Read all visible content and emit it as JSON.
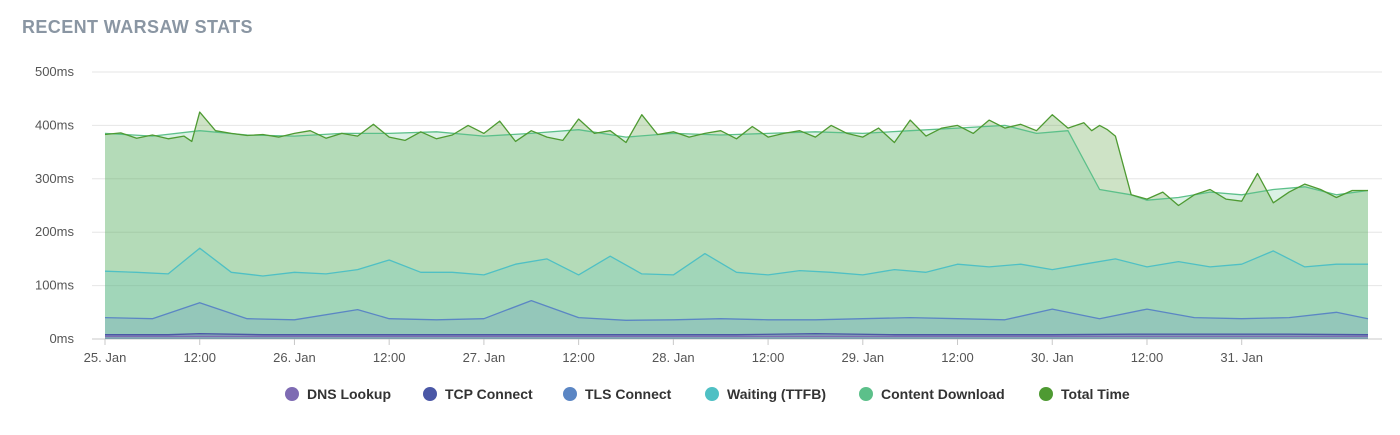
{
  "title": "RECENT WARSAW STATS",
  "colors": {
    "dns": "#7e6bb3",
    "tcp": "#4a57a6",
    "tls": "#5b86c4",
    "ttfb": "#4fc0c4",
    "download": "#5cc08a",
    "total": "#4e9a32",
    "grid": "#e6e6e6",
    "axis": "#c8c8c8"
  },
  "chart_data": {
    "type": "area",
    "title": "RECENT WARSAW STATS",
    "xlabel": "",
    "ylabel": "",
    "ylim": [
      0,
      500
    ],
    "y_ticks": [
      "0ms",
      "100ms",
      "200ms",
      "300ms",
      "400ms",
      "500ms"
    ],
    "y_tick_values": [
      0,
      100,
      200,
      300,
      400,
      500
    ],
    "x_ticks": [
      "25. Jan",
      "12:00",
      "26. Jan",
      "12:00",
      "27. Jan",
      "12:00",
      "28. Jan",
      "12:00",
      "29. Jan",
      "12:00",
      "30. Jan",
      "12:00",
      "31. Jan"
    ],
    "x_tick_values": [
      0,
      12,
      24,
      36,
      48,
      60,
      72,
      84,
      96,
      108,
      120,
      132,
      144
    ],
    "x_unit": "hours since 25. Jan 00:00",
    "x_range": [
      0,
      160
    ],
    "grid": true,
    "legend_position": "bottom",
    "series": [
      {
        "name": "DNS Lookup",
        "key": "dns",
        "x": [
          0,
          20,
          40,
          60,
          80,
          100,
          120,
          140,
          160
        ],
        "values": [
          5,
          5,
          5,
          5,
          5,
          5,
          5,
          5,
          5
        ]
      },
      {
        "name": "TCP Connect",
        "key": "tcp",
        "x": [
          0,
          8,
          12,
          20,
          32,
          40,
          52,
          60,
          70,
          80,
          90,
          100,
          110,
          120,
          130,
          140,
          150,
          160
        ],
        "values": [
          8,
          8,
          10,
          8,
          8,
          8,
          8,
          8,
          8,
          8,
          10,
          8,
          8,
          8,
          9,
          9,
          9,
          8
        ]
      },
      {
        "name": "TLS Connect",
        "key": "tls",
        "x": [
          0,
          6,
          12,
          18,
          24,
          32,
          36,
          42,
          48,
          54,
          60,
          66,
          72,
          78,
          84,
          90,
          96,
          102,
          108,
          114,
          120,
          126,
          132,
          138,
          144,
          150,
          156,
          160
        ],
        "values": [
          40,
          38,
          68,
          38,
          36,
          55,
          38,
          36,
          38,
          72,
          40,
          35,
          36,
          38,
          36,
          36,
          38,
          40,
          38,
          36,
          56,
          38,
          56,
          40,
          38,
          40,
          50,
          38
        ]
      },
      {
        "name": "Waiting (TTFB)",
        "key": "ttfb",
        "x": [
          0,
          4,
          8,
          12,
          16,
          20,
          24,
          28,
          32,
          36,
          40,
          44,
          48,
          52,
          56,
          60,
          64,
          68,
          72,
          76,
          80,
          84,
          88,
          92,
          96,
          100,
          104,
          108,
          112,
          116,
          120,
          124,
          128,
          132,
          136,
          140,
          144,
          148,
          152,
          156,
          160
        ],
        "values": [
          127,
          125,
          122,
          170,
          125,
          118,
          125,
          122,
          130,
          148,
          125,
          125,
          120,
          140,
          150,
          120,
          155,
          122,
          120,
          160,
          125,
          120,
          128,
          125,
          120,
          130,
          125,
          140,
          135,
          140,
          130,
          140,
          150,
          135,
          145,
          135,
          140,
          165,
          135,
          140,
          140
        ]
      },
      {
        "name": "Content Download",
        "key": "download",
        "x": [
          0,
          6,
          12,
          18,
          24,
          30,
          36,
          42,
          48,
          54,
          60,
          66,
          72,
          78,
          84,
          90,
          96,
          102,
          108,
          114,
          118,
          122,
          126,
          130,
          132,
          136,
          140,
          144,
          148,
          152,
          156,
          160
        ],
        "values": [
          385,
          380,
          390,
          382,
          380,
          385,
          385,
          388,
          380,
          385,
          392,
          378,
          385,
          382,
          385,
          388,
          385,
          390,
          395,
          400,
          385,
          390,
          280,
          270,
          260,
          265,
          275,
          270,
          280,
          285,
          270,
          278
        ]
      },
      {
        "name": "Total Time",
        "key": "total",
        "x": [
          0,
          2,
          4,
          6,
          8,
          10,
          11,
          12,
          14,
          16,
          18,
          20,
          22,
          24,
          26,
          28,
          30,
          32,
          34,
          36,
          38,
          40,
          42,
          44,
          46,
          48,
          50,
          52,
          54,
          56,
          58,
          60,
          62,
          64,
          66,
          68,
          70,
          72,
          74,
          76,
          78,
          80,
          82,
          84,
          86,
          88,
          90,
          92,
          94,
          96,
          98,
          100,
          102,
          104,
          106,
          108,
          110,
          112,
          114,
          116,
          118,
          120,
          122,
          124,
          125,
          126,
          127,
          128,
          130,
          132,
          134,
          136,
          138,
          140,
          142,
          144,
          146,
          148,
          150,
          152,
          154,
          156,
          158,
          160
        ],
        "values": [
          383,
          386,
          376,
          382,
          375,
          380,
          370,
          425,
          390,
          385,
          381,
          383,
          378,
          385,
          390,
          376,
          385,
          380,
          402,
          378,
          372,
          388,
          375,
          382,
          400,
          385,
          408,
          370,
          390,
          378,
          372,
          412,
          385,
          390,
          368,
          420,
          383,
          388,
          378,
          385,
          390,
          375,
          398,
          378,
          385,
          390,
          378,
          400,
          385,
          378,
          395,
          368,
          410,
          380,
          395,
          400,
          385,
          410,
          395,
          402,
          390,
          420,
          395,
          405,
          390,
          400,
          392,
          380,
          270,
          262,
          275,
          250,
          270,
          280,
          262,
          258,
          310,
          255,
          275,
          290,
          280,
          265,
          278,
          278
        ]
      }
    ]
  },
  "legend": [
    {
      "label": "DNS Lookup",
      "color_key": "dns"
    },
    {
      "label": "TCP Connect",
      "color_key": "tcp"
    },
    {
      "label": "TLS Connect",
      "color_key": "tls"
    },
    {
      "label": "Waiting (TTFB)",
      "color_key": "ttfb"
    },
    {
      "label": "Content Download",
      "color_key": "download"
    },
    {
      "label": "Total Time",
      "color_key": "total"
    }
  ]
}
